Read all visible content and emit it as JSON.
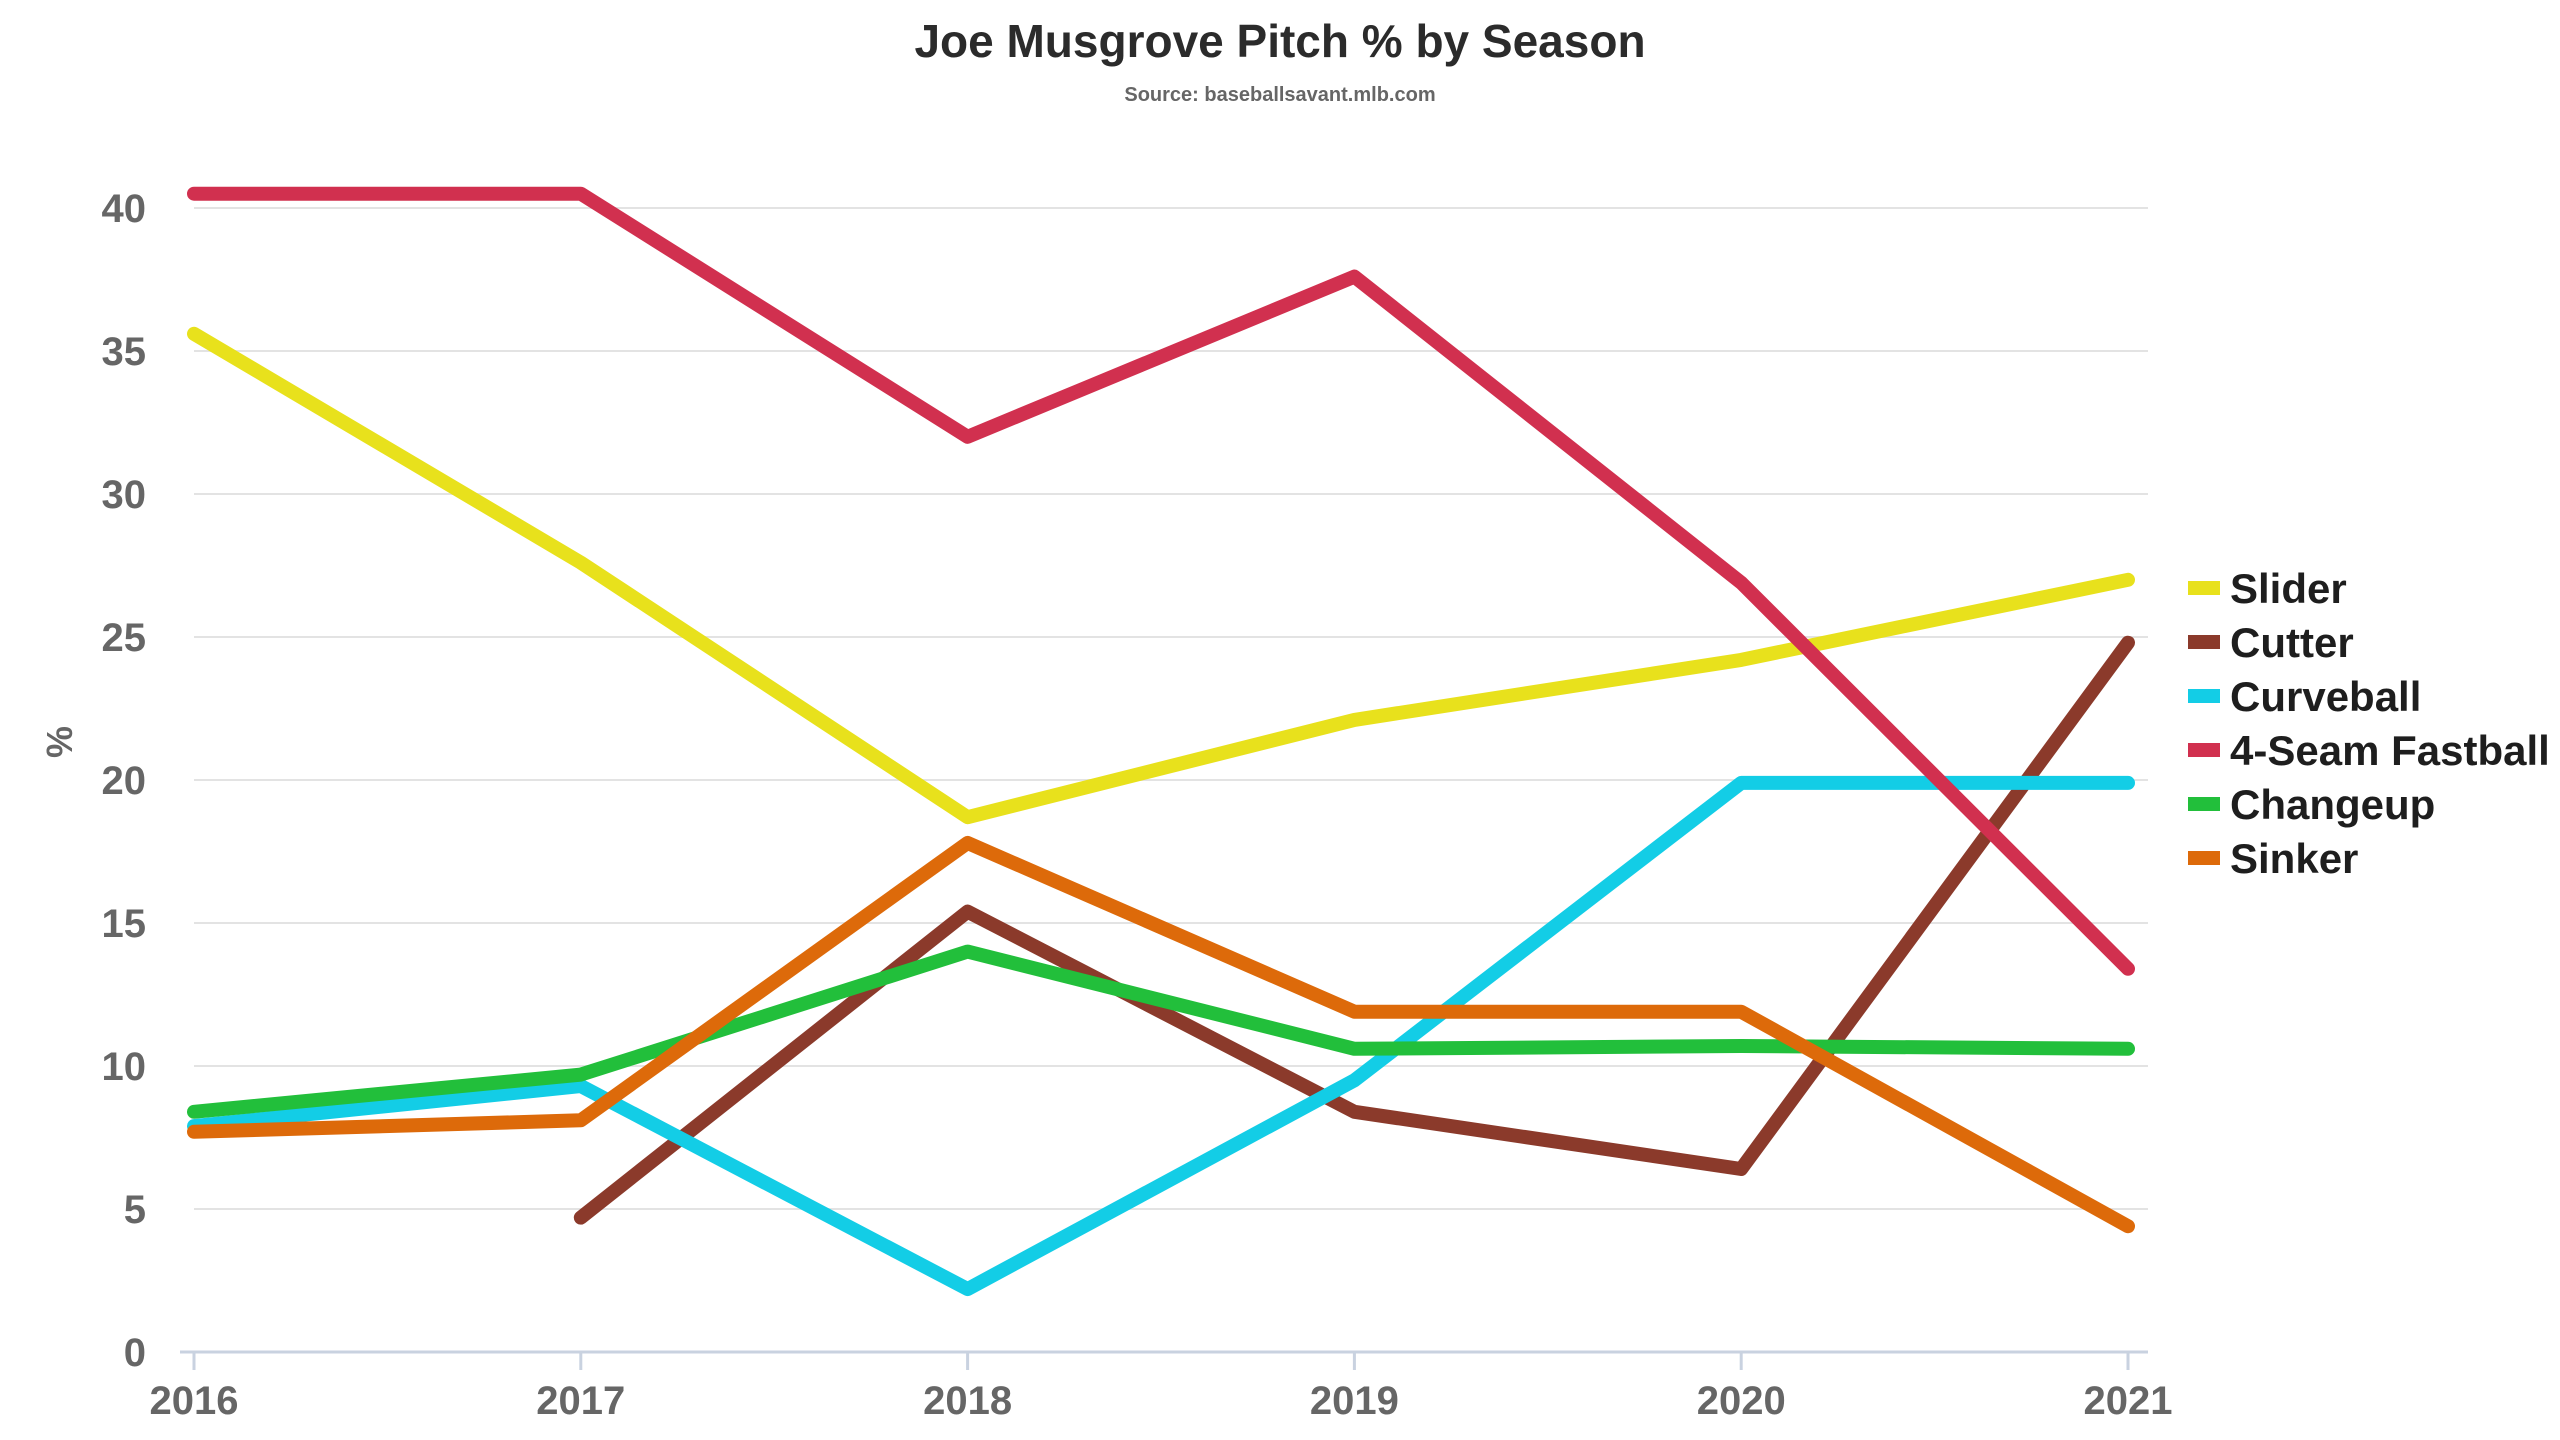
{
  "chart_data": {
    "type": "line",
    "title": "Joe Musgrove Pitch % by Season",
    "subtitle": "Source: baseballsavant.mlb.com",
    "xlabel": "",
    "ylabel": "%",
    "x": [
      "2016",
      "2017",
      "2018",
      "2019",
      "2020",
      "2021"
    ],
    "yticks": [
      0,
      5,
      10,
      15,
      20,
      25,
      30,
      35,
      40
    ],
    "ylim": [
      0,
      40.5
    ],
    "grid": true,
    "legend_position": "right",
    "series": [
      {
        "name": "Slider",
        "color": "#e8e11c",
        "values": [
          35.6,
          27.6,
          18.7,
          22.1,
          24.2,
          27.0
        ]
      },
      {
        "name": "Cutter",
        "color": "#8b3a2b",
        "values": [
          null,
          4.7,
          15.4,
          8.4,
          6.4,
          24.8
        ]
      },
      {
        "name": "Curveball",
        "color": "#13cde6",
        "values": [
          7.9,
          9.3,
          2.2,
          9.5,
          19.9,
          19.9
        ]
      },
      {
        "name": "4-Seam Fastball",
        "color": "#d1304f",
        "values": [
          40.5,
          40.5,
          32.0,
          37.6,
          26.9,
          13.4
        ]
      },
      {
        "name": "Changeup",
        "color": "#22bf3b",
        "values": [
          8.4,
          9.7,
          14.0,
          10.6,
          10.7,
          10.6
        ]
      },
      {
        "name": "Sinker",
        "color": "#dd6a0a",
        "values": [
          7.7,
          8.1,
          17.8,
          11.9,
          11.9,
          4.4
        ]
      }
    ]
  }
}
